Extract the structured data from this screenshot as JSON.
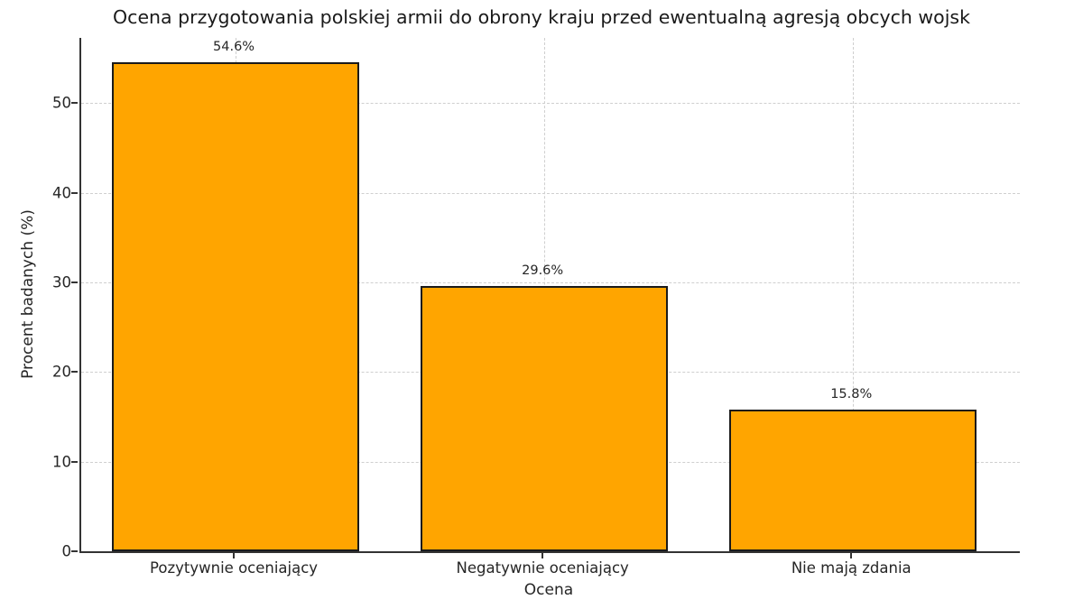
{
  "chart_data": {
    "type": "bar",
    "title": "Ocena przygotowania polskiej armii do obrony kraju przed ewentualną agresją obcych wojsk",
    "categories": [
      "Pozytywnie oceniający",
      "Negatywnie oceniający",
      "Nie mają zdania"
    ],
    "values": [
      54.6,
      29.6,
      15.8
    ],
    "value_labels": [
      "54.6%",
      "29.6%",
      "15.8%"
    ],
    "xlabel": "Ocena",
    "ylabel": "Procent badanych (%)",
    "ylim": [
      0,
      57.3
    ],
    "yticks": [
      0,
      10,
      20,
      30,
      40,
      50
    ],
    "grid": true,
    "legend": false,
    "bar_color": "#FFA500",
    "bar_edge_color": "#1a1a1a",
    "grid_color": "#cfcfcf",
    "axis_color": "#333333",
    "text_color": "#262626"
  }
}
